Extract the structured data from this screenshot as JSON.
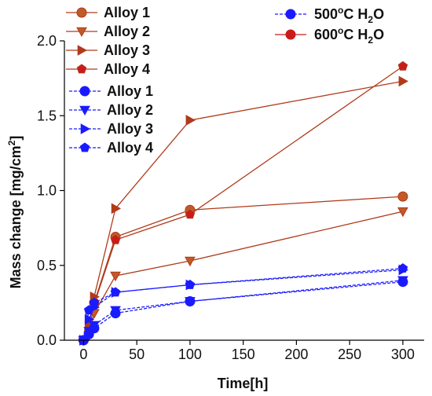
{
  "chart_data": {
    "type": "line",
    "xlabel": "Time[h]",
    "ylabel": "Mass change [mg/cm",
    "ylabel_sup": "2",
    "ylabel_end": "]",
    "xlim": [
      -18,
      320
    ],
    "ylim": [
      0,
      2.0
    ],
    "x_ticks": [
      0,
      50,
      100,
      150,
      200,
      250,
      300
    ],
    "x_tick_labels": [
      "0",
      "50",
      "100",
      "150",
      "200",
      "250",
      "300"
    ],
    "y_ticks": [
      0.0,
      0.5,
      1.0,
      1.5,
      2.0
    ],
    "y_tick_labels": [
      "0.0",
      "0.5",
      "1.0",
      "1.5",
      "2.0"
    ],
    "grid": false,
    "legend_conditions": [
      {
        "prefix": "500",
        "sup": "o",
        "mid": "C H",
        "sub": "2",
        "end": "O",
        "color": "#1a1aff",
        "dashed": true
      },
      {
        "prefix": "600",
        "sup": "o",
        "mid": "C H",
        "sub": "2",
        "end": "O",
        "color": "#cc1a1a",
        "dashed": false
      }
    ],
    "series": [
      {
        "name": "Alloy 1",
        "condition": "600",
        "marker": "circle",
        "color": "#b03a1a",
        "marker_fill": "#c05a28",
        "x": [
          0,
          5,
          10,
          30,
          100,
          300
        ],
        "y": [
          0.0,
          0.05,
          0.25,
          0.69,
          0.87,
          0.96
        ]
      },
      {
        "name": "Alloy 2",
        "condition": "600",
        "marker": "triangle-down",
        "color": "#b03a1a",
        "marker_fill": "#c05a28",
        "x": [
          0,
          5,
          10,
          30,
          100,
          300
        ],
        "y": [
          0.0,
          0.03,
          0.18,
          0.43,
          0.53,
          0.86
        ]
      },
      {
        "name": "Alloy 3",
        "condition": "600",
        "marker": "triangle-right",
        "color": "#b03a1a",
        "marker_fill": "#b03a1a",
        "x": [
          0,
          5,
          10,
          30,
          100,
          300
        ],
        "y": [
          0.0,
          0.1,
          0.29,
          0.88,
          1.47,
          1.73
        ]
      },
      {
        "name": "Alloy 4",
        "condition": "600",
        "marker": "pentagon",
        "color": "#b03a1a",
        "marker_fill": "#cc1a1a",
        "x": [
          0,
          5,
          10,
          30,
          100,
          300
        ],
        "y": [
          0.0,
          0.06,
          0.24,
          0.67,
          0.84,
          1.83
        ]
      },
      {
        "name": "Alloy 1",
        "condition": "500",
        "marker": "circle",
        "color": "#1a1aff",
        "marker_fill": "#1a1aff",
        "x": [
          0,
          5,
          10,
          30,
          100,
          300
        ],
        "y": [
          0.0,
          0.04,
          0.08,
          0.18,
          0.26,
          0.39
        ]
      },
      {
        "name": "Alloy 2",
        "condition": "500",
        "marker": "triangle-down",
        "color": "#1a1aff",
        "marker_fill": "#1a1aff",
        "x": [
          0,
          5,
          10,
          30,
          100,
          300
        ],
        "y": [
          0.0,
          0.06,
          0.1,
          0.2,
          0.26,
          0.4
        ]
      },
      {
        "name": "Alloy 3",
        "condition": "500",
        "marker": "triangle-right",
        "color": "#1a1aff",
        "marker_fill": "#1a1aff",
        "x": [
          0,
          5,
          10,
          30,
          100,
          300
        ],
        "y": [
          0.0,
          0.14,
          0.22,
          0.32,
          0.37,
          0.47
        ]
      },
      {
        "name": "Alloy 4",
        "condition": "500",
        "marker": "pentagon",
        "color": "#1a1aff",
        "marker_fill": "#1a1aff",
        "x": [
          0,
          5,
          10,
          30,
          100,
          300
        ],
        "y": [
          0.0,
          0.2,
          0.25,
          0.32,
          0.37,
          0.48
        ]
      }
    ]
  }
}
